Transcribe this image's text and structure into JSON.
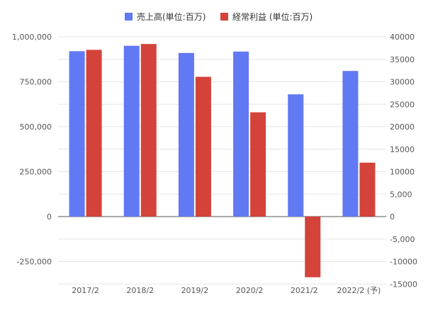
{
  "chart_data": {
    "type": "bar",
    "categories": [
      "2017/2",
      "2018/2",
      "2019/2",
      "2020/2",
      "2021/2",
      "2022/2 (予)"
    ],
    "series": [
      {
        "name": "売上高(単位:百万)",
        "axis": "left",
        "color": "#6179f2",
        "values": [
          920000,
          950000,
          910000,
          918000,
          680000,
          810000
        ]
      },
      {
        "name": "経常利益 (単位:百万)",
        "axis": "right",
        "color": "#d3433a",
        "values": [
          37100,
          38400,
          31100,
          23200,
          -13500,
          12000
        ]
      }
    ],
    "left_axis": {
      "ylim": [
        -350000,
        1000000
      ],
      "ticks": [
        -250000,
        0,
        250000,
        500000,
        750000,
        1000000
      ],
      "tick_labels": [
        "-250,000",
        "0",
        "250,000",
        "500,000",
        "750,000",
        "1,000,000"
      ]
    },
    "right_axis": {
      "ylim": [
        -15000,
        40000
      ],
      "ticks": [
        -15000,
        -10000,
        -5000,
        0,
        5000,
        10000,
        15000,
        20000,
        25000,
        30000,
        35000,
        40000
      ],
      "tick_labels": [
        "-15000",
        "-10000",
        "-5,000",
        "0",
        "5,000",
        "10000",
        "15000",
        "20000",
        "25000",
        "30000",
        "35000",
        "40000"
      ]
    },
    "grid": true,
    "legend_position": "top-center"
  }
}
